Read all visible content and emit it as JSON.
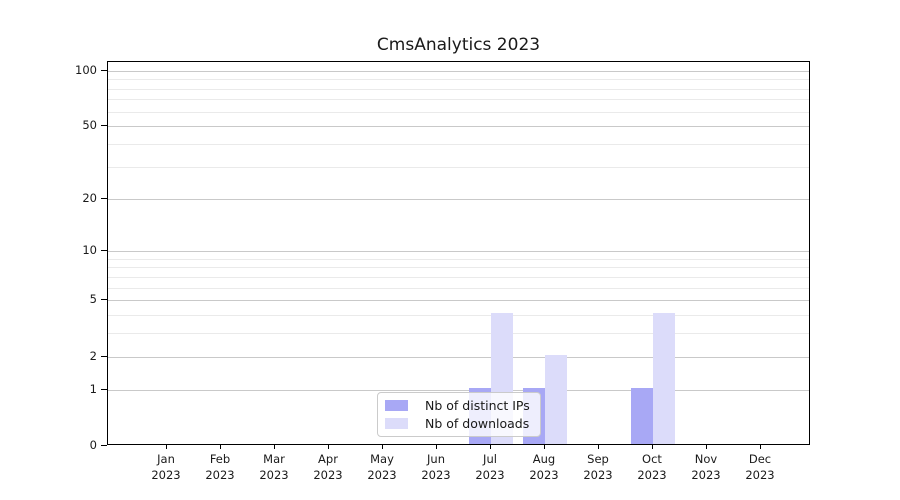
{
  "chart_data": {
    "type": "bar",
    "title": "CmsAnalytics 2023",
    "categories": [
      [
        "Jan",
        "2023"
      ],
      [
        "Feb",
        "2023"
      ],
      [
        "Mar",
        "2023"
      ],
      [
        "Apr",
        "2023"
      ],
      [
        "May",
        "2023"
      ],
      [
        "Jun",
        "2023"
      ],
      [
        "Jul",
        "2023"
      ],
      [
        "Aug",
        "2023"
      ],
      [
        "Sep",
        "2023"
      ],
      [
        "Oct",
        "2023"
      ],
      [
        "Nov",
        "2023"
      ],
      [
        "Dec",
        "2023"
      ]
    ],
    "series": [
      {
        "name": "Nb of distinct IPs",
        "color": "#a8a8f5",
        "values": [
          0,
          0,
          0,
          0,
          0,
          0,
          1,
          1,
          0,
          1,
          0,
          0
        ]
      },
      {
        "name": "Nb of downloads",
        "color": "#dcdcfa",
        "values": [
          0,
          0,
          0,
          0,
          0,
          0,
          4,
          2,
          0,
          4,
          0,
          0
        ]
      }
    ],
    "yscale": "log1p",
    "y_major_ticks": [
      0,
      1,
      2,
      5,
      10,
      20,
      50,
      100
    ],
    "y_minor_ticks": [
      3,
      4,
      6,
      7,
      8,
      9,
      30,
      40,
      60,
      70,
      80,
      90
    ],
    "ylim": [
      0,
      111
    ],
    "xlabel": "",
    "ylabel": "",
    "grid": "horizontal",
    "legend_position": "lower-center-inside",
    "colors": {
      "major_grid": "#c9c9c9",
      "minor_grid": "#eaeaea",
      "spine": "#000000",
      "text": "#1a1a1a",
      "background": "#ffffff"
    }
  }
}
